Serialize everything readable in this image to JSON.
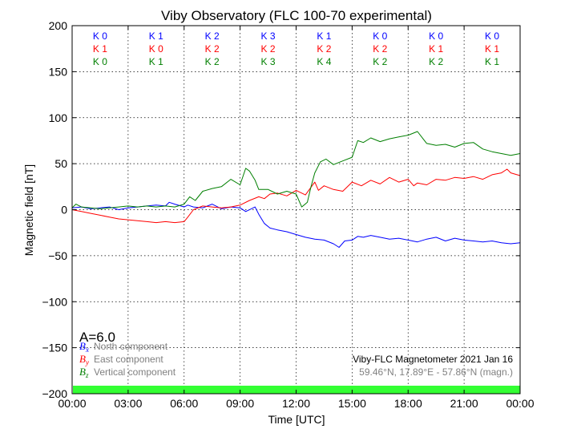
{
  "chart_data": {
    "type": "line",
    "title": "Viby Observatory (FLC 100-70 experimental)",
    "xlabel": "Time [UTC]",
    "ylabel": "Magnetic field [nT]",
    "xlim": [
      0,
      24
    ],
    "ylim": [
      -200,
      200
    ],
    "grid": true,
    "x_tick_labels": [
      "00:00",
      "03:00",
      "06:00",
      "09:00",
      "12:00",
      "15:00",
      "18:00",
      "21:00",
      "00:00"
    ],
    "y_ticks": [
      200,
      150,
      100,
      50,
      0,
      -50,
      -100,
      -150,
      -200
    ],
    "y_tick_labels": [
      "200",
      "150",
      "100",
      "50",
      "0",
      "−50",
      "−100",
      "−150",
      "−200"
    ],
    "series": [
      {
        "name": "North component",
        "symbol": "B",
        "subscript": "x",
        "color": "#0000ff",
        "x": [
          0,
          0.5,
          1,
          1.5,
          2,
          2.5,
          3,
          3.5,
          4,
          4.5,
          5,
          5.2,
          5.5,
          6,
          6.2,
          6.5,
          7,
          7.5,
          7.8,
          8,
          8.5,
          9,
          9.3,
          9.6,
          9.8,
          10,
          10.3,
          10.6,
          11,
          11.5,
          12,
          12.5,
          13,
          13.5,
          14,
          14.3,
          14.6,
          15,
          15.3,
          15.6,
          16,
          16.5,
          17,
          17.5,
          18,
          18.5,
          19,
          19.5,
          20,
          20.5,
          21,
          21.5,
          22,
          22.5,
          23,
          23.5,
          24
        ],
        "y": [
          2,
          3,
          1,
          2,
          3,
          0,
          2,
          3,
          4,
          5,
          4,
          8,
          6,
          3,
          5,
          3,
          2,
          6,
          3,
          1,
          3,
          2,
          -2,
          1,
          3,
          -5,
          -15,
          -20,
          -22,
          -24,
          -27,
          -30,
          -32,
          -33,
          -37,
          -41,
          -34,
          -33,
          -29,
          -30,
          -28,
          -30,
          -32,
          -31,
          -33,
          -35,
          -32,
          -30,
          -34,
          -31,
          -33,
          -34,
          -35,
          -34,
          -36,
          -37,
          -36
        ]
      },
      {
        "name": "East component",
        "symbol": "B",
        "subscript": "y",
        "color": "#ff0000",
        "x": [
          0,
          0.5,
          1,
          1.5,
          2,
          2.5,
          3,
          3.5,
          4,
          4.5,
          5,
          5.5,
          6,
          6.2,
          6.5,
          7,
          7.5,
          8,
          8.5,
          9,
          9.5,
          10,
          10.3,
          10.6,
          11,
          11.5,
          12,
          12.5,
          13,
          13.2,
          13.5,
          14,
          14.5,
          15,
          15.5,
          16,
          16.5,
          17,
          17.5,
          18,
          18.3,
          18.5,
          19,
          19.5,
          20,
          20.5,
          21,
          21.5,
          22,
          22.5,
          23,
          23.3,
          23.5,
          24
        ],
        "y": [
          0,
          -2,
          -4,
          -6,
          -8,
          -10,
          -11,
          -12,
          -13,
          -14,
          -13,
          -14,
          -13,
          -8,
          0,
          4,
          3,
          2,
          3,
          5,
          10,
          14,
          12,
          17,
          18,
          15,
          21,
          16,
          30,
          21,
          26,
          22,
          20,
          30,
          26,
          32,
          28,
          35,
          30,
          33,
          26,
          29,
          27,
          33,
          32,
          35,
          34,
          36,
          33,
          38,
          40,
          44,
          40,
          37
        ]
      },
      {
        "name": "Vertical component",
        "symbol": "B",
        "subscript": "z",
        "color": "#007f00",
        "x": [
          0,
          0.2,
          0.5,
          1,
          1.5,
          2,
          2.5,
          3,
          3.5,
          4,
          4.5,
          5,
          5.5,
          6,
          6.3,
          6.6,
          7,
          7.5,
          8,
          8.5,
          9,
          9.3,
          9.5,
          9.8,
          10,
          10.5,
          11,
          11.5,
          12,
          12.3,
          12.6,
          12.8,
          13,
          13.3,
          13.6,
          14,
          14.5,
          15,
          15.3,
          15.6,
          16,
          16.5,
          17,
          17.5,
          18,
          18.5,
          18.8,
          19,
          19.5,
          20,
          20.5,
          21,
          21.5,
          22,
          22.5,
          23,
          23.5,
          24
        ],
        "y": [
          2,
          6,
          3,
          2,
          1,
          2,
          3,
          4,
          3,
          4,
          3,
          4,
          3,
          6,
          14,
          10,
          20,
          23,
          25,
          33,
          27,
          45,
          42,
          32,
          22,
          22,
          17,
          20,
          17,
          3,
          8,
          25,
          40,
          52,
          55,
          49,
          53,
          57,
          75,
          73,
          78,
          74,
          77,
          79,
          81,
          85,
          77,
          72,
          70,
          71,
          68,
          72,
          73,
          66,
          63,
          61,
          59,
          61
        ]
      }
    ],
    "k_index_rows": [
      {
        "color": "#0000ff",
        "values": [
          "K 0",
          "K 1",
          "K 2",
          "K 3",
          "K 1",
          "K 0",
          "K 0",
          "K 0"
        ]
      },
      {
        "color": "#ff0000",
        "values": [
          "K 1",
          "K 0",
          "K 2",
          "K 2",
          "K 2",
          "K 2",
          "K 1",
          "K 1"
        ]
      },
      {
        "color": "#007f00",
        "values": [
          "K 0",
          "K 1",
          "K 2",
          "K 3",
          "K 4",
          "K 2",
          "K 2",
          "K 1"
        ]
      }
    ],
    "a_index": "A=6.0",
    "footer_title": "Viby-FLC Magnetometer 2021 Jan 16",
    "footer_coords": "59.46°N, 17.89°E - 57.86°N (magn.)",
    "status_bar_color": "#33ff33"
  }
}
